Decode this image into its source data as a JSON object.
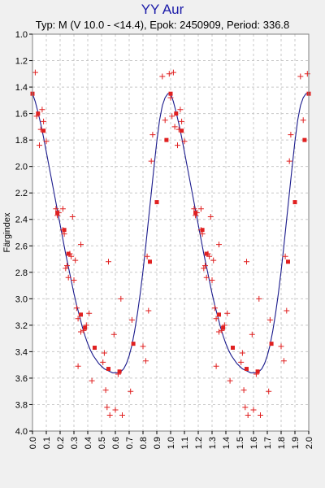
{
  "chart_data": {
    "type": "scatter",
    "title": "YY Aur",
    "subtitle": "Typ: M (V 10.0 - <14.4), Epok: 2450909, Period: 336.8",
    "xlabel": "",
    "ylabel": "Färgindex",
    "xlim": [
      0.0,
      2.0
    ],
    "ylim": [
      1.0,
      4.0
    ],
    "y_inverted": true,
    "grid": true,
    "x_ticks": [
      "0.0",
      "0.1",
      "0.2",
      "0.3",
      "0.4",
      "0.5",
      "0.6",
      "0.7",
      "0.8",
      "0.9",
      "1.0",
      "1.1",
      "1.2",
      "1.3",
      "1.4",
      "1.5",
      "1.6",
      "1.7",
      "1.8",
      "1.9",
      "2.0"
    ],
    "y_ticks": [
      "1.0",
      "1.2",
      "1.4",
      "1.6",
      "1.8",
      "2.0",
      "2.2",
      "2.4",
      "2.6",
      "2.8",
      "3.0",
      "3.2",
      "3.4",
      "3.6",
      "3.8",
      "4.0"
    ],
    "colors": {
      "background": "#f0f0f0",
      "plot_background": "#ffffff",
      "grid": "#c8c8c8",
      "curve": "#1a1a8c",
      "observations": "#e02020",
      "mean_points": "#e02020",
      "title": "#1a1aa8"
    },
    "series": [
      {
        "kind": "observations",
        "marker": "plus",
        "points": [
          [
            0.02,
            1.29
          ],
          [
            0.03,
            1.62
          ],
          [
            0.05,
            1.84
          ],
          [
            0.06,
            1.72
          ],
          [
            0.07,
            1.57
          ],
          [
            0.08,
            1.66
          ],
          [
            0.1,
            1.81
          ],
          [
            0.17,
            2.32
          ],
          [
            0.18,
            2.37
          ],
          [
            0.19,
            2.35
          ],
          [
            0.22,
            2.32
          ],
          [
            0.22,
            2.48
          ],
          [
            0.23,
            2.51
          ],
          [
            0.24,
            2.77
          ],
          [
            0.25,
            2.75
          ],
          [
            0.26,
            2.84
          ],
          [
            0.27,
            2.66
          ],
          [
            0.28,
            2.68
          ],
          [
            0.29,
            2.38
          ],
          [
            0.3,
            2.86
          ],
          [
            0.31,
            2.71
          ],
          [
            0.32,
            3.07
          ],
          [
            0.33,
            3.15
          ],
          [
            0.33,
            3.51
          ],
          [
            0.35,
            3.25
          ],
          [
            0.35,
            2.59
          ],
          [
            0.37,
            3.24
          ],
          [
            0.39,
            3.2
          ],
          [
            0.41,
            3.11
          ],
          [
            0.43,
            3.62
          ],
          [
            0.51,
            3.48
          ],
          [
            0.52,
            3.41
          ],
          [
            0.53,
            3.69
          ],
          [
            0.54,
            3.82
          ],
          [
            0.55,
            2.72
          ],
          [
            0.56,
            3.88
          ],
          [
            0.59,
            3.27
          ],
          [
            0.6,
            3.84
          ],
          [
            0.62,
            3.57
          ],
          [
            0.64,
            3.0
          ],
          [
            0.65,
            3.88
          ],
          [
            0.71,
            3.7
          ],
          [
            0.72,
            3.16
          ],
          [
            0.8,
            3.36
          ],
          [
            0.82,
            3.47
          ],
          [
            0.83,
            2.68
          ],
          [
            0.84,
            3.09
          ],
          [
            0.86,
            1.96
          ],
          [
            0.87,
            1.76
          ],
          [
            0.94,
            1.32
          ],
          [
            0.96,
            1.65
          ],
          [
            0.99,
            1.3
          ],
          [
            1.0,
            1.48
          ],
          [
            1.01,
            1.62
          ],
          [
            1.02,
            1.29
          ],
          [
            1.03,
            1.7
          ],
          [
            1.05,
            1.84
          ],
          [
            1.06,
            1.72
          ],
          [
            1.07,
            1.57
          ],
          [
            1.08,
            1.66
          ],
          [
            1.1,
            1.81
          ],
          [
            1.17,
            2.32
          ],
          [
            1.18,
            2.37
          ],
          [
            1.19,
            2.35
          ],
          [
            1.22,
            2.32
          ],
          [
            1.22,
            2.48
          ],
          [
            1.23,
            2.51
          ],
          [
            1.24,
            2.77
          ],
          [
            1.25,
            2.75
          ],
          [
            1.26,
            2.84
          ],
          [
            1.27,
            2.66
          ],
          [
            1.28,
            2.68
          ],
          [
            1.29,
            2.38
          ],
          [
            1.3,
            2.86
          ],
          [
            1.31,
            2.71
          ],
          [
            1.32,
            3.07
          ],
          [
            1.33,
            3.15
          ],
          [
            1.33,
            3.51
          ],
          [
            1.35,
            3.25
          ],
          [
            1.35,
            2.59
          ],
          [
            1.37,
            3.24
          ],
          [
            1.39,
            3.2
          ],
          [
            1.41,
            3.11
          ],
          [
            1.43,
            3.62
          ],
          [
            1.51,
            3.48
          ],
          [
            1.52,
            3.41
          ],
          [
            1.53,
            3.69
          ],
          [
            1.54,
            3.82
          ],
          [
            1.55,
            2.72
          ],
          [
            1.56,
            3.88
          ],
          [
            1.59,
            3.27
          ],
          [
            1.6,
            3.84
          ],
          [
            1.62,
            3.57
          ],
          [
            1.64,
            3.0
          ],
          [
            1.65,
            3.88
          ],
          [
            1.71,
            3.7
          ],
          [
            1.72,
            3.16
          ],
          [
            1.8,
            3.36
          ],
          [
            1.82,
            3.47
          ],
          [
            1.83,
            2.68
          ],
          [
            1.84,
            3.09
          ],
          [
            1.86,
            1.96
          ],
          [
            1.87,
            1.76
          ],
          [
            1.94,
            1.32
          ],
          [
            1.96,
            1.65
          ],
          [
            1.99,
            1.3
          ]
        ]
      },
      {
        "kind": "mean",
        "marker": "square",
        "points": [
          [
            0.0,
            1.45
          ],
          [
            0.04,
            1.6
          ],
          [
            0.08,
            1.73
          ],
          [
            0.18,
            2.35
          ],
          [
            0.23,
            2.48
          ],
          [
            0.26,
            2.66
          ],
          [
            0.35,
            3.12
          ],
          [
            0.38,
            3.22
          ],
          [
            0.45,
            3.37
          ],
          [
            0.55,
            3.53
          ],
          [
            0.63,
            3.55
          ],
          [
            0.73,
            3.34
          ],
          [
            0.85,
            2.72
          ],
          [
            0.9,
            2.27
          ],
          [
            0.97,
            1.8
          ],
          [
            1.0,
            1.45
          ],
          [
            1.04,
            1.6
          ],
          [
            1.08,
            1.73
          ],
          [
            1.18,
            2.35
          ],
          [
            1.23,
            2.48
          ],
          [
            1.26,
            2.66
          ],
          [
            1.35,
            3.12
          ],
          [
            1.38,
            3.22
          ],
          [
            1.45,
            3.37
          ],
          [
            1.55,
            3.53
          ],
          [
            1.63,
            3.55
          ],
          [
            1.73,
            3.34
          ],
          [
            1.85,
            2.72
          ],
          [
            1.9,
            2.27
          ],
          [
            1.97,
            1.8
          ],
          [
            2.0,
            1.45
          ]
        ]
      },
      {
        "kind": "fit",
        "style": "line",
        "points": [
          [
            0.0,
            1.45
          ],
          [
            0.02,
            1.51
          ],
          [
            0.04,
            1.59
          ],
          [
            0.06,
            1.68
          ],
          [
            0.08,
            1.78
          ],
          [
            0.1,
            1.89
          ],
          [
            0.12,
            2.0
          ],
          [
            0.14,
            2.11
          ],
          [
            0.16,
            2.22
          ],
          [
            0.18,
            2.33
          ],
          [
            0.2,
            2.44
          ],
          [
            0.22,
            2.55
          ],
          [
            0.24,
            2.66
          ],
          [
            0.26,
            2.76
          ],
          [
            0.28,
            2.86
          ],
          [
            0.3,
            2.96
          ],
          [
            0.32,
            3.05
          ],
          [
            0.34,
            3.13
          ],
          [
            0.36,
            3.21
          ],
          [
            0.38,
            3.28
          ],
          [
            0.4,
            3.34
          ],
          [
            0.42,
            3.39
          ],
          [
            0.44,
            3.43
          ],
          [
            0.46,
            3.46
          ],
          [
            0.48,
            3.49
          ],
          [
            0.5,
            3.51
          ],
          [
            0.52,
            3.53
          ],
          [
            0.54,
            3.54
          ],
          [
            0.56,
            3.55
          ],
          [
            0.58,
            3.56
          ],
          [
            0.6,
            3.56
          ],
          [
            0.62,
            3.56
          ],
          [
            0.64,
            3.55
          ],
          [
            0.66,
            3.53
          ],
          [
            0.68,
            3.49
          ],
          [
            0.7,
            3.43
          ],
          [
            0.72,
            3.35
          ],
          [
            0.74,
            3.24
          ],
          [
            0.76,
            3.11
          ],
          [
            0.78,
            2.96
          ],
          [
            0.8,
            2.79
          ],
          [
            0.82,
            2.6
          ],
          [
            0.84,
            2.4
          ],
          [
            0.86,
            2.2
          ],
          [
            0.88,
            2.0
          ],
          [
            0.9,
            1.81
          ],
          [
            0.92,
            1.65
          ],
          [
            0.94,
            1.54
          ],
          [
            0.96,
            1.48
          ],
          [
            0.98,
            1.45
          ],
          [
            1.0,
            1.45
          ],
          [
            1.02,
            1.51
          ],
          [
            1.04,
            1.59
          ],
          [
            1.06,
            1.68
          ],
          [
            1.08,
            1.78
          ],
          [
            1.1,
            1.89
          ],
          [
            1.12,
            2.0
          ],
          [
            1.14,
            2.11
          ],
          [
            1.16,
            2.22
          ],
          [
            1.18,
            2.33
          ],
          [
            1.2,
            2.44
          ],
          [
            1.22,
            2.55
          ],
          [
            1.24,
            2.66
          ],
          [
            1.26,
            2.76
          ],
          [
            1.28,
            2.86
          ],
          [
            1.3,
            2.96
          ],
          [
            1.32,
            3.05
          ],
          [
            1.34,
            3.13
          ],
          [
            1.36,
            3.21
          ],
          [
            1.38,
            3.28
          ],
          [
            1.4,
            3.34
          ],
          [
            1.42,
            3.39
          ],
          [
            1.44,
            3.43
          ],
          [
            1.46,
            3.46
          ],
          [
            1.48,
            3.49
          ],
          [
            1.5,
            3.51
          ],
          [
            1.52,
            3.53
          ],
          [
            1.54,
            3.54
          ],
          [
            1.56,
            3.55
          ],
          [
            1.58,
            3.56
          ],
          [
            1.6,
            3.56
          ],
          [
            1.62,
            3.56
          ],
          [
            1.64,
            3.55
          ],
          [
            1.66,
            3.53
          ],
          [
            1.68,
            3.49
          ],
          [
            1.7,
            3.43
          ],
          [
            1.72,
            3.35
          ],
          [
            1.74,
            3.24
          ],
          [
            1.76,
            3.11
          ],
          [
            1.78,
            2.96
          ],
          [
            1.8,
            2.79
          ],
          [
            1.82,
            2.6
          ],
          [
            1.84,
            2.4
          ],
          [
            1.86,
            2.2
          ],
          [
            1.88,
            2.0
          ],
          [
            1.9,
            1.81
          ],
          [
            1.92,
            1.65
          ],
          [
            1.94,
            1.54
          ],
          [
            1.96,
            1.48
          ],
          [
            1.98,
            1.45
          ],
          [
            2.0,
            1.45
          ]
        ]
      }
    ]
  }
}
